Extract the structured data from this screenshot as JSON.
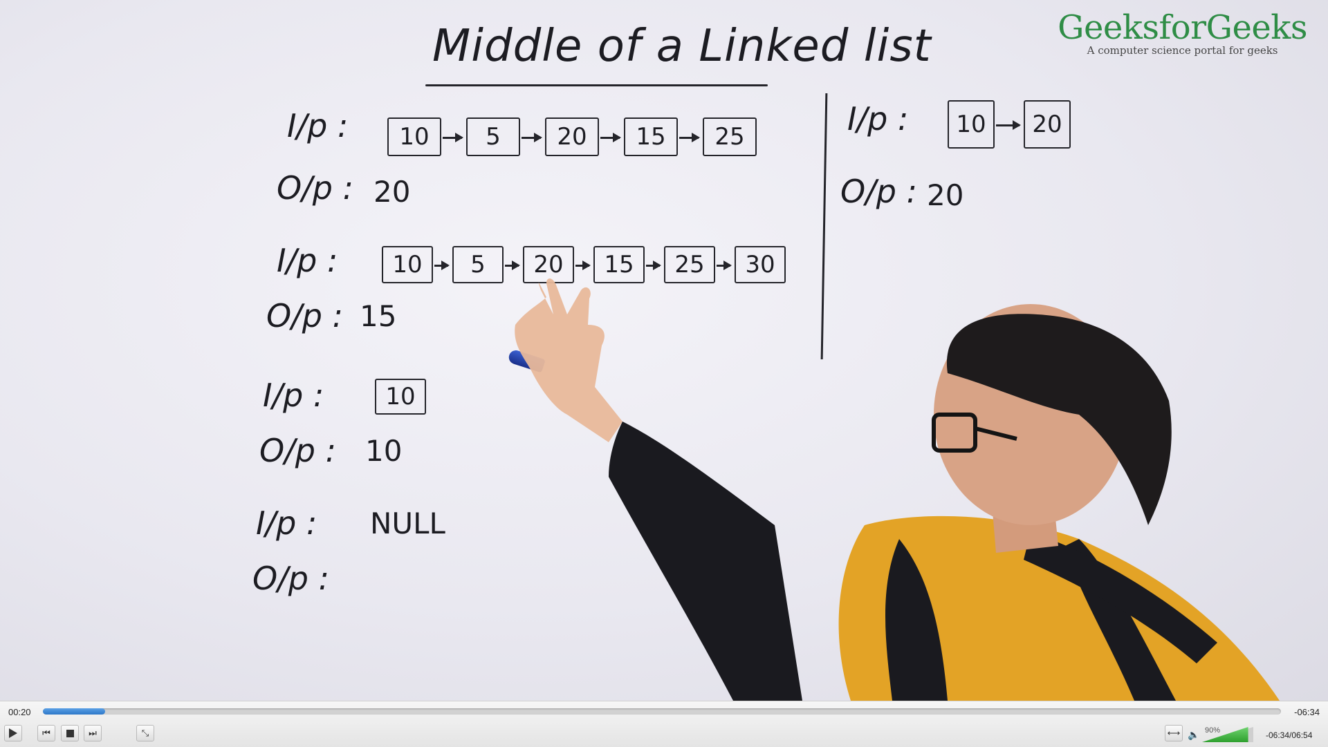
{
  "whiteboard": {
    "title": "Middle of a Linked list",
    "examples": [
      {
        "ip_label": "I/p :",
        "nodes": [
          "10",
          "5",
          "20",
          "15",
          "25"
        ],
        "op_label": "O/p :",
        "output": "20"
      },
      {
        "ip_label": "I/p :",
        "nodes": [
          "10",
          "5",
          "20",
          "15",
          "25",
          "30"
        ],
        "op_label": "O/p :",
        "output": "15"
      },
      {
        "ip_label": "I/p :",
        "nodes": [
          "10"
        ],
        "op_label": "O/p :",
        "output": "10"
      },
      {
        "ip_label": "I/p :",
        "nodes": [],
        "input_text": "NULL",
        "op_label": "O/p :",
        "output": ""
      }
    ],
    "side_example": {
      "ip_label": "I/p :",
      "nodes": [
        "10",
        "20"
      ],
      "op_label": "O/p :",
      "output": "20"
    }
  },
  "logo": {
    "name": "GeeksforGeeks",
    "tagline": "A computer science portal for geeks",
    "color": "#2f8d46"
  },
  "player": {
    "elapsed": "00:20",
    "remaining": "-06:34",
    "progress_fraction": 0.05,
    "volume_label": "90%",
    "volume_fraction": 0.9,
    "time_display": "-06:34/06:54",
    "buttons": [
      "play-icon",
      "previous-icon",
      "stop-icon",
      "next-icon",
      "fullscreen-icon",
      "aspect-ratio-icon",
      "speaker-icon"
    ]
  }
}
